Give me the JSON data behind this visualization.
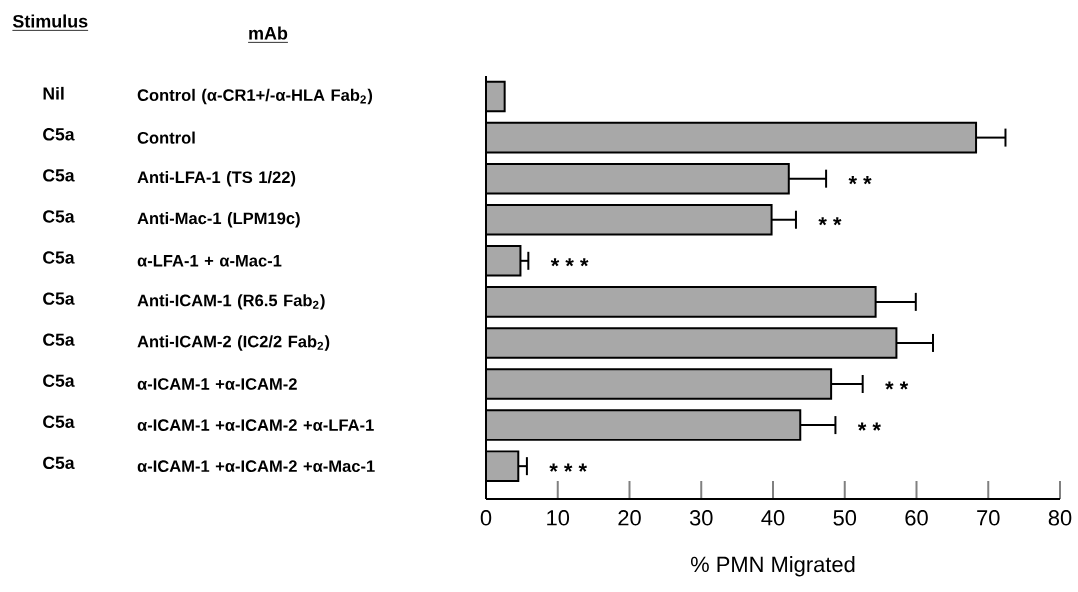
{
  "chart_data": {
    "type": "bar",
    "orientation": "horizontal",
    "xlabel": "% PMN Migrated",
    "categories": [
      "Control (α-CR1+/-α-HLA Fab$_{2}$)",
      "Control",
      "Anti-LFA-1 (TS 1/22)",
      "Anti-Mac-1 (LPM19c)",
      "α-LFA-1 + α-Mac-1",
      "Anti-ICAM-1 (R6.5 Fab$_{2}$)",
      "Anti-ICAM-2 (IC2/2 Fab$_{2}$)",
      "α-ICAM-1 +α-ICAM-2",
      "α-ICAM-1 +α-ICAM-2 +α-LFA-1",
      "α-ICAM-1 +α-ICAM-2 +α-Mac-1"
    ],
    "values": [
      2.6,
      68.3,
      42.2,
      39.8,
      4.8,
      54.3,
      57.2,
      48.1,
      43.8,
      4.5
    ],
    "errors": [
      null,
      4.1,
      5.2,
      3.4,
      1.1,
      5.6,
      5.1,
      4.4,
      4.9,
      1.2
    ],
    "color": "#a8a8a8",
    "xlim": [
      0,
      80
    ],
    "xticks": [
      0,
      10,
      20,
      30,
      40,
      50,
      60,
      70,
      80
    ],
    "annotations": [
      "Stimulus",
      "mAb",
      "Nil",
      "C5a",
      "C5a",
      "C5a",
      "C5a",
      "C5a",
      "C5a",
      "C5a",
      "C5a",
      "C5a",
      {
        "text": "* *",
        "x": 42.2,
        "y": "Anti-LFA-1 (TS 1/22)"
      },
      {
        "text": "* *",
        "x": 39.8,
        "y": "Anti-Mac-1 (LPM19c)"
      },
      {
        "text": "* * *",
        "x": 4.8,
        "y": "α-LFA-1 + α-Mac-1"
      },
      {
        "text": "* *",
        "x": 48.1,
        "y": "α-ICAM-1 +α-ICAM-2"
      },
      {
        "text": "* *",
        "x": 43.8,
        "y": "α-ICAM-1 +α-ICAM-2 +α-LFA-1"
      },
      {
        "text": "* * *",
        "x": 4.5,
        "y": "α-ICAM-1 +α-ICAM-2 +α-Mac-1"
      }
    ]
  }
}
